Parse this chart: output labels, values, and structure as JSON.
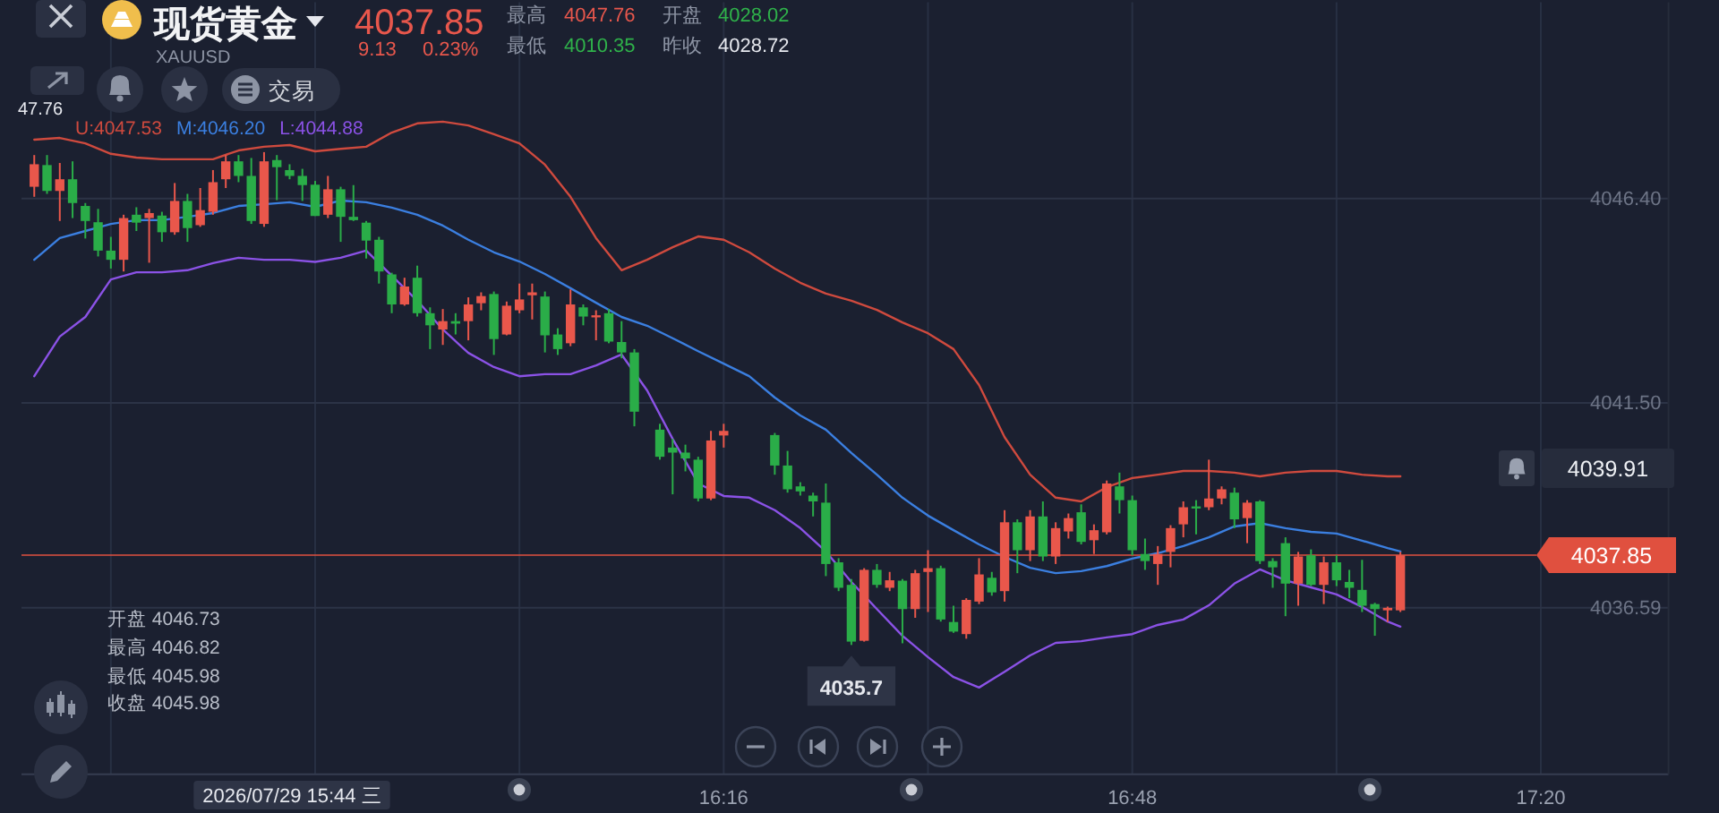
{
  "chart_data": {
    "type": "candlestick",
    "title": "现货黄金",
    "subtitle": "XAUUSD",
    "x": [
      "2026-07-29T15:22",
      "2026-07-29T15:23",
      "2026-07-29T15:24",
      "2026-07-29T15:25",
      "2026-07-29T15:26",
      "2026-07-29T15:27",
      "2026-07-29T15:28",
      "2026-07-29T15:29",
      "2026-07-29T15:30",
      "2026-07-29T15:31",
      "2026-07-29T15:32",
      "2026-07-29T15:33",
      "2026-07-29T15:34",
      "2026-07-29T15:35",
      "2026-07-29T15:36",
      "2026-07-29T15:37",
      "2026-07-29T15:38",
      "2026-07-29T15:39",
      "2026-07-29T15:40",
      "2026-07-29T15:41",
      "2026-07-29T15:42",
      "2026-07-29T15:43",
      "2026-07-29T15:44",
      "2026-07-29T15:45",
      "2026-07-29T15:46",
      "2026-07-29T15:47",
      "2026-07-29T15:48",
      "2026-07-29T15:49",
      "2026-07-29T15:50",
      "2026-07-29T15:51",
      "2026-07-29T15:52",
      "2026-07-29T15:53",
      "2026-07-29T15:54",
      "2026-07-29T15:55",
      "2026-07-29T15:56",
      "2026-07-29T15:57",
      "2026-07-29T15:58",
      "2026-07-29T15:59",
      "2026-07-29T16:00",
      "2026-07-29T16:01",
      "2026-07-29T16:02",
      "2026-07-29T16:03",
      "2026-07-29T16:04",
      "2026-07-29T16:05",
      "2026-07-29T16:06",
      "2026-07-29T16:07",
      "2026-07-29T16:08",
      "2026-07-29T16:09",
      "2026-07-29T16:11",
      "2026-07-29T16:12",
      "2026-07-29T16:13",
      "2026-07-29T16:14",
      "2026-07-29T16:15",
      "2026-07-29T16:16",
      "2026-07-29T16:20",
      "2026-07-29T16:21",
      "2026-07-29T16:22",
      "2026-07-29T16:23",
      "2026-07-29T16:24",
      "2026-07-29T16:25",
      "2026-07-29T16:26",
      "2026-07-29T16:27",
      "2026-07-29T16:28",
      "2026-07-29T16:29",
      "2026-07-29T16:30",
      "2026-07-29T16:31",
      "2026-07-29T16:32",
      "2026-07-29T16:33",
      "2026-07-29T16:34",
      "2026-07-29T16:35",
      "2026-07-29T16:36",
      "2026-07-29T16:37",
      "2026-07-29T16:38",
      "2026-07-29T16:39",
      "2026-07-29T16:40",
      "2026-07-29T16:41",
      "2026-07-29T16:42",
      "2026-07-29T16:43",
      "2026-07-29T16:44",
      "2026-07-29T16:45",
      "2026-07-29T16:46",
      "2026-07-29T16:47",
      "2026-07-29T16:48",
      "2026-07-29T16:49",
      "2026-07-29T16:50",
      "2026-07-29T16:51",
      "2026-07-29T16:52",
      "2026-07-29T16:53",
      "2026-07-29T16:54",
      "2026-07-29T16:55",
      "2026-07-29T16:56",
      "2026-07-29T16:57",
      "2026-07-29T16:58",
      "2026-07-29T16:59",
      "2026-07-29T17:00",
      "2026-07-29T17:01",
      "2026-07-29T17:02",
      "2026-07-29T17:03",
      "2026-07-29T17:04",
      "2026-07-29T17:05",
      "2026-07-29T17:06",
      "2026-07-29T17:07",
      "2026-07-29T17:08",
      "2026-07-29T17:09"
    ],
    "ohlc": [
      [
        4046.68,
        4047.44,
        4046.44,
        4047.22
      ],
      [
        4047.2,
        4047.44,
        4046.51,
        4046.58
      ],
      [
        4046.58,
        4047.25,
        4045.86,
        4046.86
      ],
      [
        4046.86,
        4047.29,
        4045.93,
        4046.29
      ],
      [
        4046.22,
        4046.29,
        4045.44,
        4045.86
      ],
      [
        4045.83,
        4046.15,
        4045.01,
        4045.15
      ],
      [
        4045.15,
        4045.48,
        4044.72,
        4044.93
      ],
      [
        4044.93,
        4046.01,
        4044.65,
        4045.93
      ],
      [
        4046.01,
        4046.19,
        4045.62,
        4045.82
      ],
      [
        4045.93,
        4046.15,
        4044.86,
        4046.05
      ],
      [
        4045.99,
        4046.08,
        4045.36,
        4045.59
      ],
      [
        4045.59,
        4046.77,
        4045.53,
        4046.34
      ],
      [
        4046.34,
        4046.51,
        4045.36,
        4045.69
      ],
      [
        4045.76,
        4046.65,
        4045.72,
        4046.12
      ],
      [
        4046.08,
        4047.08,
        4046.01,
        4046.79
      ],
      [
        4046.86,
        4047.44,
        4046.65,
        4047.29
      ],
      [
        4047.29,
        4047.44,
        4046.79,
        4046.94
      ],
      [
        4046.94,
        4047.37,
        4045.79,
        4045.86
      ],
      [
        4045.79,
        4047.51,
        4045.72,
        4047.29
      ],
      [
        4047.32,
        4047.44,
        4046.36,
        4047.15
      ],
      [
        4047.08,
        4047.22,
        4046.86,
        4046.94
      ],
      [
        4046.94,
        4047.11,
        4046.34,
        4046.72
      ],
      [
        4046.73,
        4046.82,
        4045.98,
        4045.98
      ],
      [
        4046.01,
        4046.94,
        4045.93,
        4046.62
      ],
      [
        4046.62,
        4046.68,
        4045.36,
        4045.96
      ],
      [
        4045.96,
        4046.72,
        4045.86,
        4045.88
      ],
      [
        4045.82,
        4045.86,
        4044.96,
        4045.39
      ],
      [
        4045.41,
        4045.48,
        4044.36,
        4044.65
      ],
      [
        4044.58,
        4044.62,
        4043.65,
        4043.86
      ],
      [
        4043.86,
        4044.5,
        4043.83,
        4044.29
      ],
      [
        4044.5,
        4044.79,
        4043.57,
        4043.65
      ],
      [
        4043.65,
        4043.79,
        4042.79,
        4043.36
      ],
      [
        4043.26,
        4043.75,
        4042.89,
        4043.46
      ],
      [
        4043.46,
        4043.65,
        4043.14,
        4043.4
      ],
      [
        4043.46,
        4044.03,
        4043.0,
        4043.86
      ],
      [
        4043.89,
        4044.15,
        4043.72,
        4044.06
      ],
      [
        4044.11,
        4044.17,
        4042.65,
        4043.03
      ],
      [
        4043.14,
        4043.93,
        4043.12,
        4043.83
      ],
      [
        4043.72,
        4044.36,
        4043.65,
        4043.98
      ],
      [
        4044.08,
        4044.36,
        4043.5,
        4044.15
      ],
      [
        4044.05,
        4044.17,
        4042.71,
        4043.12
      ],
      [
        4043.14,
        4043.29,
        4042.65,
        4042.79
      ],
      [
        4042.93,
        4044.22,
        4042.86,
        4043.86
      ],
      [
        4043.79,
        4043.86,
        4043.36,
        4043.57
      ],
      [
        4043.55,
        4043.72,
        4043.0,
        4043.6
      ],
      [
        4043.65,
        4043.75,
        4042.93,
        4042.97
      ],
      [
        4042.96,
        4043.46,
        4042.57,
        4042.71
      ],
      [
        4042.71,
        4042.79,
        4040.94,
        4041.29
      ],
      [
        4040.86,
        4041.0,
        4040.14,
        4040.21
      ],
      [
        4040.43,
        4040.64,
        4039.31,
        4040.31
      ],
      [
        4040.31,
        4040.5,
        4039.86,
        4040.17
      ],
      [
        4040.14,
        4040.21,
        4039.14,
        4039.21
      ],
      [
        4039.21,
        4040.83,
        4039.17,
        4040.6
      ],
      [
        4040.72,
        4041.0,
        4040.43,
        4040.83
      ],
      [
        4040.73,
        4040.78,
        4039.78,
        4040.0
      ],
      [
        4040.0,
        4040.35,
        4039.35,
        4039.43
      ],
      [
        4039.5,
        4039.6,
        4039.28,
        4039.38
      ],
      [
        4039.28,
        4039.35,
        4038.78,
        4039.14
      ],
      [
        4039.11,
        4039.57,
        4037.35,
        4037.64
      ],
      [
        4037.68,
        4037.78,
        4036.99,
        4037.07
      ],
      [
        4037.14,
        4037.28,
        4035.7,
        4035.78
      ],
      [
        4035.8,
        4037.54,
        4035.78,
        4037.5
      ],
      [
        4037.5,
        4037.64,
        4037.07,
        4037.14
      ],
      [
        4037.07,
        4037.45,
        4036.99,
        4037.25
      ],
      [
        4037.24,
        4037.28,
        4035.74,
        4036.56
      ],
      [
        4036.56,
        4037.5,
        4036.35,
        4037.42
      ],
      [
        4037.45,
        4037.97,
        4036.49,
        4037.54
      ],
      [
        4037.54,
        4037.6,
        4036.26,
        4036.31
      ],
      [
        4036.25,
        4036.64,
        4035.99,
        4036.02
      ],
      [
        4035.96,
        4036.82,
        4035.85,
        4036.78
      ],
      [
        4036.74,
        4037.78,
        4036.68,
        4037.39
      ],
      [
        4037.31,
        4037.45,
        4036.88,
        4036.96
      ],
      [
        4036.99,
        4038.93,
        4036.74,
        4038.64
      ],
      [
        4038.64,
        4038.71,
        4037.42,
        4037.97
      ],
      [
        4037.97,
        4038.93,
        4037.71,
        4038.78
      ],
      [
        4038.78,
        4039.14,
        4037.71,
        4037.82
      ],
      [
        4037.82,
        4038.64,
        4037.64,
        4038.5
      ],
      [
        4038.42,
        4038.85,
        4038.25,
        4038.74
      ],
      [
        4038.88,
        4039.07,
        4038.11,
        4038.17
      ],
      [
        4038.21,
        4038.59,
        4037.88,
        4038.45
      ],
      [
        4038.4,
        4039.64,
        4038.35,
        4039.57
      ],
      [
        4039.5,
        4039.83,
        4038.85,
        4039.17
      ],
      [
        4039.17,
        4039.28,
        4037.85,
        4037.97
      ],
      [
        4037.88,
        4038.25,
        4037.5,
        4037.71
      ],
      [
        4037.64,
        4038.07,
        4037.14,
        4037.88
      ],
      [
        4037.93,
        4038.57,
        4037.56,
        4038.5
      ],
      [
        4038.59,
        4039.14,
        4038.28,
        4039.0
      ],
      [
        4039.02,
        4039.17,
        4038.35,
        4038.97
      ],
      [
        4039.0,
        4040.14,
        4038.93,
        4039.21
      ],
      [
        4039.21,
        4039.5,
        4039.07,
        4039.43
      ],
      [
        4039.35,
        4039.47,
        4038.5,
        4038.71
      ],
      [
        4038.74,
        4039.17,
        4038.14,
        4039.11
      ],
      [
        4039.14,
        4039.17,
        4037.64,
        4037.71
      ],
      [
        4037.71,
        4037.78,
        4037.07,
        4037.56
      ],
      [
        4038.14,
        4038.28,
        4036.39,
        4037.17
      ],
      [
        4037.17,
        4037.93,
        4036.64,
        4037.82
      ],
      [
        4037.85,
        4037.99,
        4037.11,
        4037.14
      ],
      [
        4037.14,
        4037.82,
        4036.68,
        4037.68
      ],
      [
        4037.68,
        4037.85,
        4037.11,
        4037.25
      ],
      [
        4037.21,
        4037.5,
        4036.82,
        4037.07
      ],
      [
        4037.02,
        4037.74,
        4036.49,
        4036.64
      ],
      [
        4036.68,
        4036.71,
        4035.92,
        4036.56
      ],
      [
        4036.53,
        4036.62,
        4036.25,
        4036.59
      ],
      [
        4036.53,
        4037.93,
        4036.49,
        4037.85
      ]
    ],
    "colors": [
      "#e9574b",
      "#2aad48",
      "#e9574b",
      "#2aad48",
      "#2aad48",
      "#2aad48",
      "#2aad48",
      "#e9574b",
      "#2aad48",
      "#e9574b",
      "#2aad48",
      "#e9574b",
      "#2aad48",
      "#e9574b",
      "#e9574b",
      "#e9574b",
      "#2aad48",
      "#2aad48",
      "#e9574b",
      "#2aad48",
      "#2aad48",
      "#2aad48",
      "#2aad48",
      "#e9574b",
      "#2aad48",
      "#2aad48",
      "#2aad48",
      "#2aad48",
      "#2aad48",
      "#e9574b",
      "#2aad48",
      "#2aad48",
      "#e9574b",
      "#2aad48",
      "#e9574b",
      "#e9574b",
      "#2aad48",
      "#e9574b",
      "#e9574b",
      "#e9574b",
      "#2aad48",
      "#2aad48",
      "#e9574b",
      "#2aad48",
      "#e9574b",
      "#2aad48",
      "#2aad48",
      "#2aad48",
      "#2aad48",
      "#2aad48",
      "#2aad48",
      "#2aad48",
      "#e9574b",
      "#e9574b",
      "#2aad48",
      "#2aad48",
      "#2aad48",
      "#2aad48",
      "#2aad48",
      "#2aad48",
      "#2aad48",
      "#e9574b",
      "#2aad48",
      "#e9574b",
      "#2aad48",
      "#e9574b",
      "#e9574b",
      "#2aad48",
      "#2aad48",
      "#e9574b",
      "#e9574b",
      "#2aad48",
      "#e9574b",
      "#2aad48",
      "#e9574b",
      "#2aad48",
      "#e9574b",
      "#e9574b",
      "#2aad48",
      "#e9574b",
      "#e9574b",
      "#2aad48",
      "#2aad48",
      "#2aad48",
      "#e9574b",
      "#e9574b",
      "#e9574b",
      "#2aad48",
      "#e9574b",
      "#e9574b",
      "#2aad48",
      "#e9574b",
      "#2aad48",
      "#2aad48",
      "#2aad48",
      "#e9574b",
      "#2aad48",
      "#e9574b",
      "#2aad48",
      "#2aad48",
      "#2aad48",
      "#2aad48",
      "#e9574b",
      "#e9574b"
    ],
    "series": [
      {
        "name": "U:4047.53",
        "type": "line",
        "color": "#cf4a3e",
        "x": [
          "2026-07-29T15:22",
          "2026-07-29T15:24",
          "2026-07-29T15:26",
          "2026-07-29T15:28",
          "2026-07-29T15:30",
          "2026-07-29T15:32",
          "2026-07-29T15:34",
          "2026-07-29T15:36",
          "2026-07-29T15:38",
          "2026-07-29T15:40",
          "2026-07-29T15:42",
          "2026-07-29T15:44",
          "2026-07-29T15:46",
          "2026-07-29T15:48",
          "2026-07-29T15:50",
          "2026-07-29T15:52",
          "2026-07-29T15:54",
          "2026-07-29T15:56",
          "2026-07-29T15:58",
          "2026-07-29T16:00",
          "2026-07-29T16:02",
          "2026-07-29T16:04",
          "2026-07-29T16:06",
          "2026-07-29T16:08",
          "2026-07-29T16:10",
          "2026-07-29T16:12",
          "2026-07-29T16:14",
          "2026-07-29T16:16",
          "2026-07-29T16:18",
          "2026-07-29T16:20",
          "2026-07-29T16:22",
          "2026-07-29T16:24",
          "2026-07-29T16:26",
          "2026-07-29T16:28",
          "2026-07-29T16:30",
          "2026-07-29T16:32",
          "2026-07-29T16:34",
          "2026-07-29T16:36",
          "2026-07-29T16:38",
          "2026-07-29T16:40",
          "2026-07-29T16:42",
          "2026-07-29T16:44",
          "2026-07-29T16:46",
          "2026-07-29T16:48",
          "2026-07-29T16:50",
          "2026-07-29T16:52",
          "2026-07-29T16:54",
          "2026-07-29T16:56",
          "2026-07-29T16:58",
          "2026-07-29T17:00",
          "2026-07-29T17:02",
          "2026-07-29T17:04",
          "2026-07-29T17:06",
          "2026-07-29T17:08",
          "2026-07-29T17:09"
        ],
        "values": [
          4047.81,
          4047.85,
          4047.72,
          4047.47,
          4047.38,
          4047.34,
          4047.34,
          4047.34,
          4047.55,
          4047.64,
          4047.68,
          4047.53,
          4047.59,
          4047.64,
          4047.98,
          4048.2,
          4048.24,
          4048.15,
          4047.94,
          4047.72,
          4047.21,
          4046.44,
          4045.45,
          4044.68,
          4044.93,
          4045.23,
          4045.49,
          4045.41,
          4045.11,
          4044.72,
          4044.38,
          4044.12,
          4043.95,
          4043.73,
          4043.43,
          4043.17,
          4042.79,
          4041.93,
          4040.68,
          4039.78,
          4039.23,
          4039.14,
          4039.48,
          4039.7,
          4039.78,
          4039.87,
          4039.87,
          4039.83,
          4039.74,
          4039.83,
          4039.87,
          4039.87,
          4039.78,
          4039.74,
          4039.74
        ]
      },
      {
        "name": "M:4046.20",
        "type": "line",
        "color": "#3b7fe0",
        "x": [
          "2026-07-29T15:22",
          "2026-07-29T15:24",
          "2026-07-29T15:26",
          "2026-07-29T15:28",
          "2026-07-29T15:30",
          "2026-07-29T15:32",
          "2026-07-29T15:34",
          "2026-07-29T15:36",
          "2026-07-29T15:38",
          "2026-07-29T15:40",
          "2026-07-29T15:42",
          "2026-07-29T15:44",
          "2026-07-29T15:46",
          "2026-07-29T15:48",
          "2026-07-29T15:50",
          "2026-07-29T15:52",
          "2026-07-29T15:54",
          "2026-07-29T15:56",
          "2026-07-29T15:58",
          "2026-07-29T16:00",
          "2026-07-29T16:02",
          "2026-07-29T16:04",
          "2026-07-29T16:06",
          "2026-07-29T16:08",
          "2026-07-29T16:10",
          "2026-07-29T16:12",
          "2026-07-29T16:14",
          "2026-07-29T16:16",
          "2026-07-29T16:18",
          "2026-07-29T16:20",
          "2026-07-29T16:22",
          "2026-07-29T16:24",
          "2026-07-29T16:26",
          "2026-07-29T16:28",
          "2026-07-29T16:30",
          "2026-07-29T16:32",
          "2026-07-29T16:34",
          "2026-07-29T16:36",
          "2026-07-29T16:38",
          "2026-07-29T16:40",
          "2026-07-29T16:42",
          "2026-07-29T16:44",
          "2026-07-29T16:46",
          "2026-07-29T16:48",
          "2026-07-29T16:50",
          "2026-07-29T16:52",
          "2026-07-29T16:54",
          "2026-07-29T16:56",
          "2026-07-29T16:58",
          "2026-07-29T17:00",
          "2026-07-29T17:02",
          "2026-07-29T17:04",
          "2026-07-29T17:06",
          "2026-07-29T17:08",
          "2026-07-29T17:09"
        ],
        "values": [
          4044.93,
          4045.45,
          4045.62,
          4045.79,
          4045.88,
          4045.88,
          4045.96,
          4046.05,
          4046.22,
          4046.26,
          4046.31,
          4046.2,
          4046.35,
          4046.31,
          4046.18,
          4046.01,
          4045.75,
          4045.41,
          4045.11,
          4044.89,
          4044.59,
          4044.25,
          4043.9,
          4043.56,
          4043.35,
          4043.05,
          4042.74,
          4042.44,
          4042.14,
          4041.63,
          4041.2,
          4040.86,
          4040.3,
          4039.78,
          4039.23,
          4038.8,
          4038.45,
          4038.11,
          4037.81,
          4037.55,
          4037.42,
          4037.47,
          4037.59,
          4037.77,
          4037.9,
          4038.07,
          4038.28,
          4038.54,
          4038.62,
          4038.5,
          4038.41,
          4038.37,
          4038.2,
          4038.02,
          4037.94
        ]
      },
      {
        "name": "L:4044.88",
        "type": "line",
        "color": "#8b52e6",
        "x": [
          "2026-07-29T15:22",
          "2026-07-29T15:24",
          "2026-07-29T15:26",
          "2026-07-29T15:28",
          "2026-07-29T15:30",
          "2026-07-29T15:32",
          "2026-07-29T15:34",
          "2026-07-29T15:36",
          "2026-07-29T15:38",
          "2026-07-29T15:40",
          "2026-07-29T15:42",
          "2026-07-29T15:44",
          "2026-07-29T15:46",
          "2026-07-29T15:48",
          "2026-07-29T15:50",
          "2026-07-29T15:52",
          "2026-07-29T15:54",
          "2026-07-29T15:56",
          "2026-07-29T15:58",
          "2026-07-29T16:00",
          "2026-07-29T16:02",
          "2026-07-29T16:04",
          "2026-07-29T16:06",
          "2026-07-29T16:08",
          "2026-07-29T16:10",
          "2026-07-29T16:12",
          "2026-07-29T16:14",
          "2026-07-29T16:16",
          "2026-07-29T16:18",
          "2026-07-29T16:20",
          "2026-07-29T16:22",
          "2026-07-29T16:24",
          "2026-07-29T16:26",
          "2026-07-29T16:28",
          "2026-07-29T16:30",
          "2026-07-29T16:32",
          "2026-07-29T16:34",
          "2026-07-29T16:36",
          "2026-07-29T16:38",
          "2026-07-29T16:40",
          "2026-07-29T16:42",
          "2026-07-29T16:44",
          "2026-07-29T16:46",
          "2026-07-29T16:48",
          "2026-07-29T16:50",
          "2026-07-29T16:52",
          "2026-07-29T16:54",
          "2026-07-29T16:56",
          "2026-07-29T16:58",
          "2026-07-29T17:00",
          "2026-07-29T17:02",
          "2026-07-29T17:04",
          "2026-07-29T17:06",
          "2026-07-29T17:08",
          "2026-07-29T17:09"
        ],
        "values": [
          4042.14,
          4043.09,
          4043.56,
          4044.46,
          4044.63,
          4044.63,
          4044.68,
          4044.85,
          4044.98,
          4044.93,
          4044.93,
          4044.88,
          4044.98,
          4045.15,
          4044.55,
          4043.95,
          4043.26,
          4042.7,
          4042.36,
          4042.14,
          4042.19,
          4042.19,
          4042.4,
          4042.66,
          4041.8,
          4040.64,
          4039.57,
          4039.27,
          4039.23,
          4038.93,
          4038.5,
          4037.94,
          4037.21,
          4036.56,
          4035.92,
          4035.41,
          4034.93,
          4034.68,
          4035.06,
          4035.45,
          4035.75,
          4035.79,
          4035.88,
          4035.96,
          4036.18,
          4036.31,
          4036.65,
          4037.17,
          4037.51,
          4037.25,
          4037.08,
          4036.91,
          4036.61,
          4036.26,
          4036.14
        ]
      }
    ],
    "xlim": [
      "2026-07-29T15:21",
      "2026-07-29T17:30"
    ],
    "ylim": [
      4032.6,
      4051.1
    ],
    "xticks": [
      {
        "value": "2026-07-29T15:28",
        "label": null
      },
      {
        "value": "2026-07-29T15:44",
        "label": null
      },
      {
        "value": "2026-07-29T16:00",
        "label": null
      },
      {
        "value": "2026-07-29T16:16",
        "label": "16:16"
      },
      {
        "value": "2026-07-29T16:32",
        "label": null
      },
      {
        "value": "2026-07-29T16:48",
        "label": "16:48"
      },
      {
        "value": "2026-07-29T17:04",
        "label": null
      },
      {
        "value": "2026-07-29T17:20",
        "label": "17:20"
      }
    ],
    "yticks": [
      {
        "value": 4046.4,
        "label": "4046.40"
      },
      {
        "value": 4041.5,
        "label": "4041.50"
      },
      4036.59
    ],
    "grid": true,
    "legend": "top left",
    "ref_lines": [
      {
        "axis": "y",
        "value": 4037.85,
        "label": "4037.85",
        "color": "#e0503f"
      }
    ],
    "annotations": [
      "4037.85",
      "9.13",
      "0.23%",
      "最高",
      "4047.76",
      "开盘",
      "4028.02",
      "最低",
      "4010.35",
      "昨收",
      "4028.72",
      "交易",
      "47.76",
      "开盘 4046.73",
      "最高 4046.82",
      "最低 4045.98",
      "收盘 4045.98",
      "2026/07/29 15:44 三",
      {
        "text": "4035.7",
        "x": "2026-07-29T16:26",
        "y": 4035.7
      },
      "4039.91"
    ]
  }
}
